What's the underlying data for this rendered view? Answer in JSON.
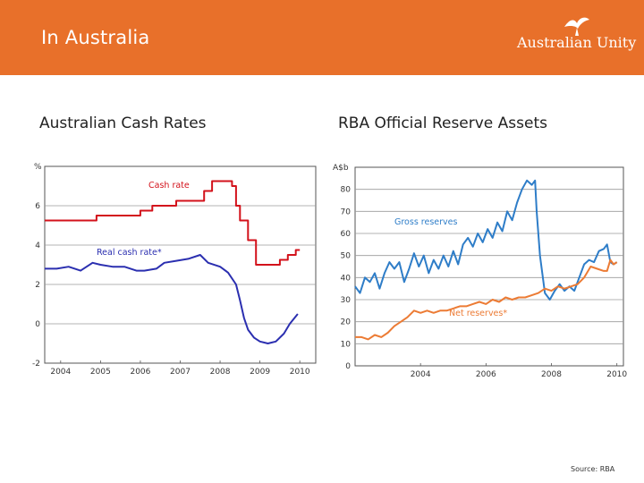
{
  "header": {
    "title": "In Australia",
    "brand": "Australian Unity",
    "color": "#e8702a"
  },
  "source": "Source: RBA",
  "chart_data": [
    {
      "type": "line",
      "title": "Australian Cash Rates",
      "ylabel": "%",
      "ylim": [
        -2,
        8
      ],
      "yticks": [
        -2,
        0,
        2,
        4,
        6
      ],
      "xlim": [
        2003.6,
        2010.4
      ],
      "xticks": [
        "2004",
        "2005",
        "2006",
        "2007",
        "2008",
        "2009",
        "2010"
      ],
      "series": [
        {
          "name": "Cash rate",
          "color": "#d3121b",
          "x": [
            2003.6,
            2004.9,
            2004.9,
            2006.0,
            2006.0,
            2006.3,
            2006.3,
            2006.9,
            2006.9,
            2007.6,
            2007.6,
            2007.8,
            2007.8,
            2008.3,
            2008.3,
            2008.4,
            2008.4,
            2008.5,
            2008.5,
            2008.7,
            2008.7,
            2008.9,
            2008.9,
            2009.5,
            2009.5,
            2009.7,
            2009.7,
            2009.9,
            2009.9,
            2010.0
          ],
          "y": [
            5.25,
            5.25,
            5.5,
            5.5,
            5.75,
            5.75,
            6.0,
            6.0,
            6.25,
            6.25,
            6.75,
            6.75,
            7.25,
            7.25,
            7.0,
            7.0,
            6.0,
            6.0,
            5.25,
            5.25,
            4.25,
            4.25,
            3.0,
            3.0,
            3.25,
            3.25,
            3.5,
            3.5,
            3.75,
            3.75
          ]
        },
        {
          "name": "Real cash rate*",
          "color": "#2b2fb0",
          "x": [
            2003.6,
            2003.9,
            2004.2,
            2004.5,
            2004.8,
            2005.0,
            2005.3,
            2005.6,
            2005.9,
            2006.1,
            2006.4,
            2006.6,
            2006.9,
            2007.2,
            2007.5,
            2007.7,
            2008.0,
            2008.2,
            2008.4,
            2008.5,
            2008.6,
            2008.7,
            2008.85,
            2009.0,
            2009.2,
            2009.4,
            2009.6,
            2009.75,
            2009.95
          ],
          "y": [
            2.8,
            2.8,
            2.9,
            2.7,
            3.1,
            3.0,
            2.9,
            2.9,
            2.7,
            2.7,
            2.8,
            3.1,
            3.2,
            3.3,
            3.5,
            3.1,
            2.9,
            2.6,
            2.0,
            1.2,
            0.3,
            -0.3,
            -0.7,
            -0.9,
            -1.0,
            -0.9,
            -0.5,
            0.0,
            0.5
          ]
        }
      ],
      "annotations": [
        "Cash rate",
        "Real cash rate*"
      ]
    },
    {
      "type": "line",
      "title": "RBA Official Reserve Assets",
      "ylabel": "A$b",
      "ylim": [
        0,
        90
      ],
      "yticks": [
        0,
        10,
        20,
        30,
        40,
        50,
        60,
        70,
        80
      ],
      "xlim": [
        2002.0,
        2010.2
      ],
      "xticks": [
        "2004",
        "2006",
        "2008",
        "2010"
      ],
      "series": [
        {
          "name": "Gross reserves",
          "color": "#2e7dc8",
          "x": [
            2002.0,
            2002.15,
            2002.3,
            2002.45,
            2002.6,
            2002.75,
            2002.9,
            2003.05,
            2003.2,
            2003.35,
            2003.5,
            2003.65,
            2003.8,
            2003.95,
            2004.1,
            2004.25,
            2004.4,
            2004.55,
            2004.7,
            2004.85,
            2005.0,
            2005.15,
            2005.3,
            2005.45,
            2005.6,
            2005.75,
            2005.9,
            2006.05,
            2006.2,
            2006.35,
            2006.5,
            2006.65,
            2006.8,
            2006.95,
            2007.1,
            2007.25,
            2007.4,
            2007.5,
            2007.55,
            2007.65,
            2007.8,
            2007.95,
            2008.1,
            2008.25,
            2008.4,
            2008.55,
            2008.7,
            2008.85,
            2009.0,
            2009.15,
            2009.3,
            2009.45,
            2009.6,
            2009.7,
            2009.8,
            2009.9,
            2010.0
          ],
          "y": [
            36,
            33,
            40,
            38,
            42,
            35,
            42,
            47,
            44,
            47,
            38,
            44,
            51,
            45,
            50,
            42,
            48,
            44,
            50,
            45,
            52,
            46,
            55,
            58,
            54,
            60,
            56,
            62,
            58,
            65,
            61,
            70,
            66,
            74,
            80,
            84,
            82,
            84,
            70,
            50,
            33,
            30,
            34,
            37,
            34,
            36,
            34,
            40,
            46,
            48,
            47,
            52,
            53,
            55,
            47,
            46,
            47
          ]
        },
        {
          "name": "Net reserves*",
          "color": "#ec7b34",
          "x": [
            2002.0,
            2002.2,
            2002.4,
            2002.6,
            2002.8,
            2003.0,
            2003.2,
            2003.4,
            2003.6,
            2003.8,
            2004.0,
            2004.2,
            2004.4,
            2004.6,
            2004.8,
            2005.0,
            2005.2,
            2005.4,
            2005.6,
            2005.8,
            2006.0,
            2006.2,
            2006.4,
            2006.6,
            2006.8,
            2007.0,
            2007.2,
            2007.4,
            2007.6,
            2007.8,
            2008.0,
            2008.2,
            2008.4,
            2008.6,
            2008.8,
            2009.0,
            2009.2,
            2009.4,
            2009.6,
            2009.7,
            2009.8,
            2009.9,
            2010.0
          ],
          "y": [
            13,
            13,
            12,
            14,
            13,
            15,
            18,
            20,
            22,
            25,
            24,
            25,
            24,
            25,
            25,
            26,
            27,
            27,
            28,
            29,
            28,
            30,
            29,
            31,
            30,
            31,
            31,
            32,
            33,
            35,
            34,
            36,
            35,
            36,
            37,
            40,
            45,
            44,
            43,
            43,
            48,
            46,
            47
          ]
        }
      ],
      "annotations": [
        "Gross reserves",
        "Net reserves*"
      ]
    }
  ]
}
